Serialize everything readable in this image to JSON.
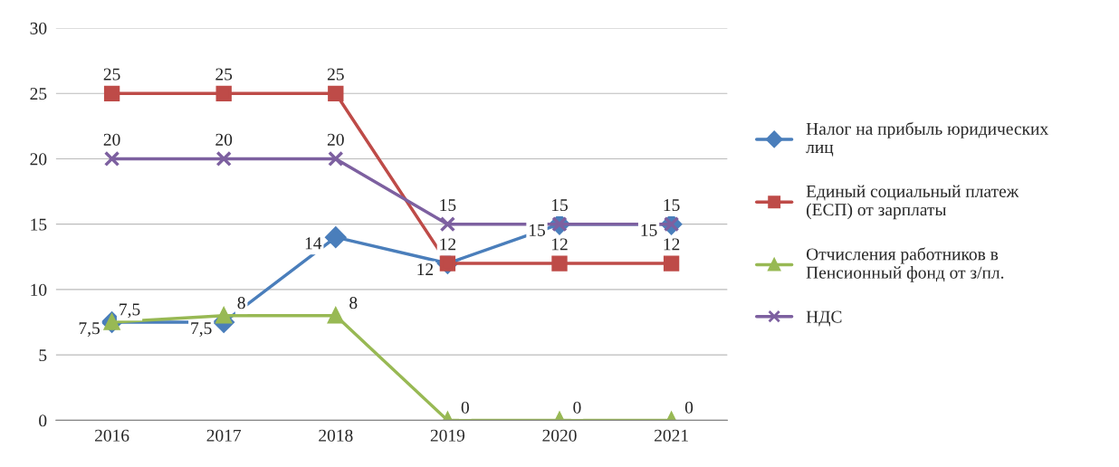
{
  "chart_data": {
    "type": "line",
    "categories": [
      "2016",
      "2017",
      "2018",
      "2019",
      "2020",
      "2021"
    ],
    "series": [
      {
        "name": "Налог на прибыль юридических лиц",
        "color": "#4a7ebb",
        "marker": "diamond",
        "values": [
          7.5,
          7.5,
          14,
          12,
          15,
          15
        ],
        "value_labels": [
          "7,5",
          "7,5",
          "14",
          "12",
          "15",
          "15"
        ]
      },
      {
        "name": "Единый социальный платеж (ЕСП) от зарплаты",
        "color": "#be4b48",
        "marker": "square",
        "values": [
          25,
          25,
          25,
          12,
          12,
          12
        ],
        "value_labels": [
          "25",
          "25",
          "25",
          "12",
          "12",
          "12"
        ]
      },
      {
        "name": "Отчисления работников в Пенсионный фонд от з/пл.",
        "color": "#98b954",
        "marker": "triangle",
        "values": [
          7.5,
          8,
          8,
          0,
          0,
          0
        ],
        "value_labels": [
          "7,5",
          "8",
          "8",
          "0",
          "0",
          "0"
        ]
      },
      {
        "name": "НДС",
        "color": "#7d60a0",
        "marker": "cross",
        "values": [
          20,
          20,
          20,
          15,
          15,
          15
        ],
        "value_labels": [
          "20",
          "20",
          "20",
          "15",
          "15",
          "15"
        ]
      }
    ],
    "ylim": [
      0,
      30
    ],
    "yticks": [
      0,
      5,
      10,
      15,
      20,
      25,
      30
    ],
    "grid": "y",
    "legend": "right"
  }
}
